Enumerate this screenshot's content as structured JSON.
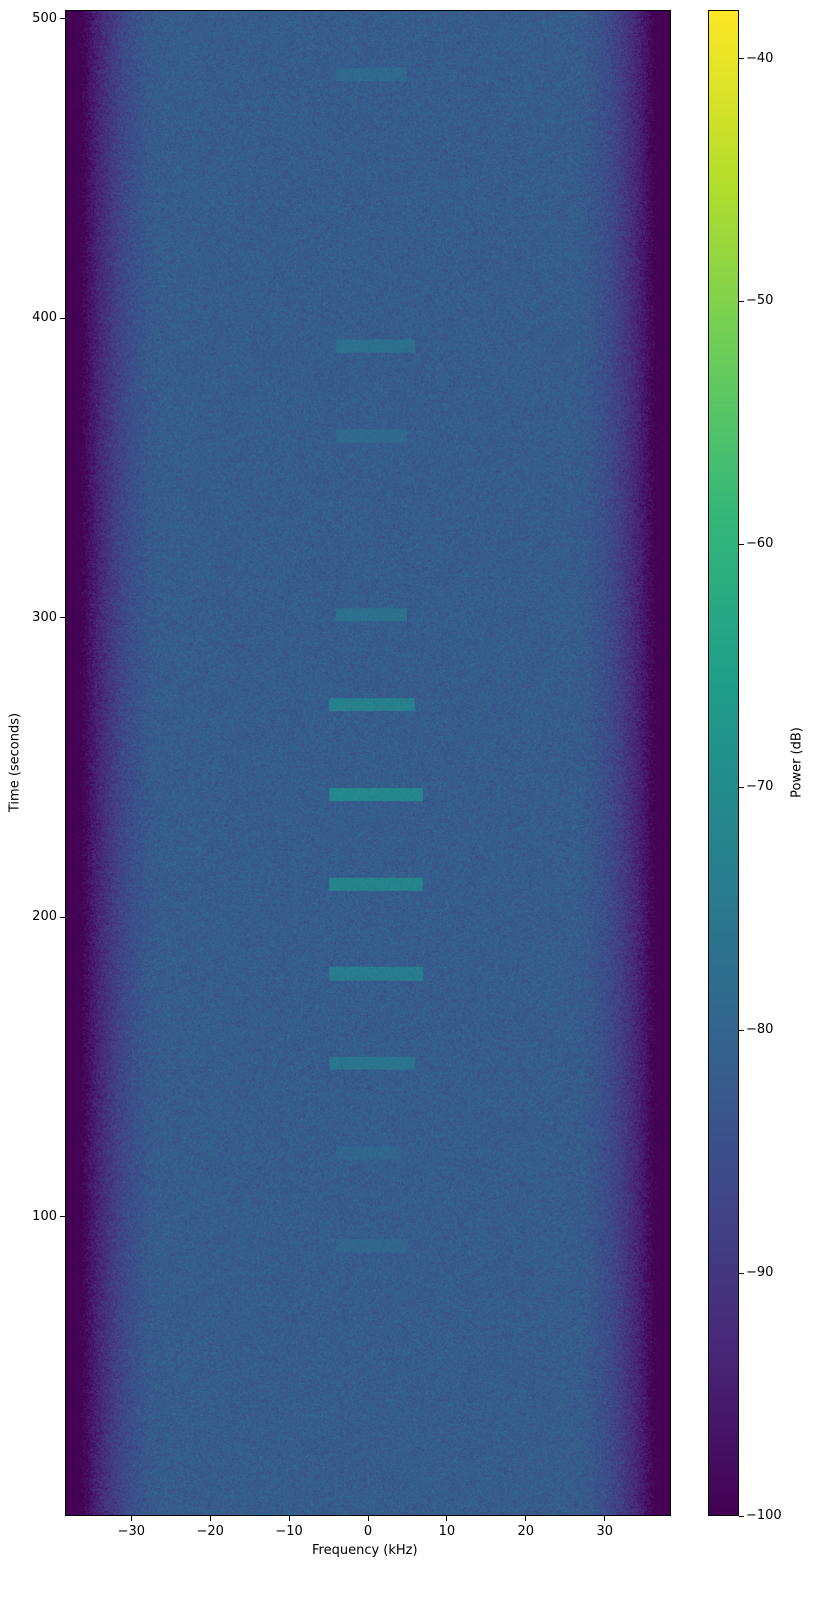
{
  "chart_data": {
    "type": "heatmap",
    "title": "",
    "xlabel": "Frequency (kHz)",
    "ylabel": "Time (seconds)",
    "xlim": [
      -38.4,
      38.4
    ],
    "ylim": [
      0,
      503
    ],
    "xticks": [
      -30,
      -20,
      -10,
      0,
      10,
      20,
      30
    ],
    "xtick_labels": [
      "−30",
      "−20",
      "−10",
      "0",
      "10",
      "20",
      "30"
    ],
    "yticks": [
      100,
      200,
      300,
      400,
      500
    ],
    "ytick_labels": [
      "100",
      "200",
      "300",
      "400",
      "500"
    ],
    "colormap": "viridis",
    "colorbar": {
      "label": "Power (dB)",
      "range": [
        -100,
        -38
      ],
      "ticks": [
        -40,
        -50,
        -60,
        -70,
        -80,
        -90,
        -100
      ],
      "tick_labels": [
        "−40",
        "−50",
        "−60",
        "−70",
        "−80",
        "−90",
        "−100"
      ]
    },
    "background_floor_db": -82,
    "passband_edge_khz": 33,
    "out_of_band_db": -100,
    "signal_bursts": [
      {
        "time_s": 482,
        "freq_range_khz": [
          -4,
          5
        ],
        "power_db": -79
      },
      {
        "time_s": 391,
        "freq_range_khz": [
          -4,
          6
        ],
        "power_db": -77
      },
      {
        "time_s": 361,
        "freq_range_khz": [
          -4,
          5
        ],
        "power_db": -79
      },
      {
        "time_s": 301,
        "freq_range_khz": [
          -4,
          5
        ],
        "power_db": -77
      },
      {
        "time_s": 271,
        "freq_range_khz": [
          -5,
          6
        ],
        "power_db": -73
      },
      {
        "time_s": 241,
        "freq_range_khz": [
          -5,
          7
        ],
        "power_db": -71
      },
      {
        "time_s": 211,
        "freq_range_khz": [
          -5,
          7
        ],
        "power_db": -72
      },
      {
        "time_s": 181,
        "freq_range_khz": [
          -5,
          7
        ],
        "power_db": -74
      },
      {
        "time_s": 151,
        "freq_range_khz": [
          -5,
          6
        ],
        "power_db": -76
      },
      {
        "time_s": 121,
        "freq_range_khz": [
          -4,
          4
        ],
        "power_db": -80
      },
      {
        "time_s": 90,
        "freq_range_khz": [
          -4,
          5
        ],
        "power_db": -80
      }
    ]
  }
}
